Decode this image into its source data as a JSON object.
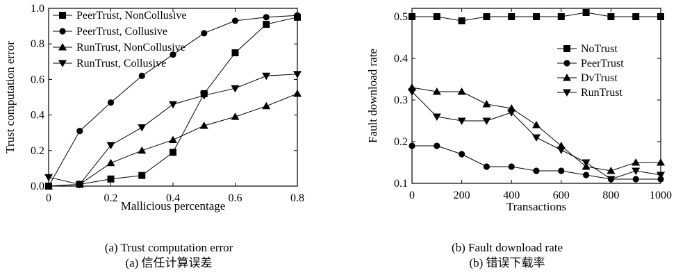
{
  "chart_data": [
    {
      "type": "line",
      "xlabel": "Mallicious percentage",
      "ylabel": "Trust computation error",
      "xlim": [
        0,
        0.8
      ],
      "ylim": [
        0,
        1.0
      ],
      "x_ticks": [
        "0",
        "0.2",
        "0.4",
        "0.6",
        "0.8"
      ],
      "y_ticks": [
        "0.0",
        "0.2",
        "0.4",
        "0.6",
        "0.8",
        "1.0"
      ],
      "x": [
        0,
        0.1,
        0.2,
        0.3,
        0.4,
        0.5,
        0.6,
        0.7,
        0.8
      ],
      "legend": "top-left",
      "series": [
        {
          "name": "PeerTrust, NonCollusive",
          "marker": "square",
          "values": [
            0.0,
            0.01,
            0.04,
            0.06,
            0.19,
            0.52,
            0.75,
            0.91,
            0.95
          ]
        },
        {
          "name": "PeerTrust, Collusive",
          "marker": "circle",
          "values": [
            0.0,
            0.31,
            0.47,
            0.62,
            0.74,
            0.86,
            0.93,
            0.95,
            0.96
          ]
        },
        {
          "name": "RunTrust, NonCollusive",
          "marker": "triangle-up",
          "values": [
            0.0,
            0.01,
            0.13,
            0.2,
            0.26,
            0.34,
            0.39,
            0.45,
            0.52
          ]
        },
        {
          "name": "RunTrust, Collusive",
          "marker": "triangle-down",
          "values": [
            0.05,
            0.01,
            0.23,
            0.33,
            0.46,
            0.51,
            0.55,
            0.62,
            0.63
          ]
        }
      ]
    },
    {
      "type": "line",
      "xlabel": "Transactions",
      "ylabel": "Fault download rate",
      "xlim": [
        0,
        1000
      ],
      "ylim": [
        0.1,
        0.52
      ],
      "x_ticks": [
        "0",
        "200",
        "400",
        "600",
        "800",
        "1000"
      ],
      "y_ticks": [
        "0.1",
        "0.2",
        "0.3",
        "0.4",
        "0.5"
      ],
      "x": [
        0,
        100,
        200,
        300,
        400,
        500,
        600,
        700,
        800,
        900,
        1000
      ],
      "legend": "right",
      "series": [
        {
          "name": "NoTrust",
          "marker": "square",
          "values": [
            0.5,
            0.5,
            0.49,
            0.5,
            0.5,
            0.5,
            0.5,
            0.51,
            0.5,
            0.5,
            0.5
          ]
        },
        {
          "name": "PeerTrust",
          "marker": "circle",
          "values": [
            0.19,
            0.19,
            0.17,
            0.14,
            0.14,
            0.13,
            0.13,
            0.12,
            0.11,
            0.11,
            0.11
          ]
        },
        {
          "name": "DvTrust",
          "marker": "triangle-up",
          "values": [
            0.33,
            0.32,
            0.32,
            0.29,
            0.28,
            0.24,
            0.19,
            0.14,
            0.13,
            0.15,
            0.15
          ]
        },
        {
          "name": "RunTrust",
          "marker": "triangle-down",
          "values": [
            0.32,
            0.26,
            0.25,
            0.25,
            0.27,
            0.21,
            0.18,
            0.15,
            0.11,
            0.13,
            0.12
          ]
        }
      ]
    }
  ],
  "captions": {
    "a_en": "(a) Trust computation error",
    "a_zh": "(a)  信任计算误差",
    "b_en": "(b) Fault download rate",
    "b_zh": "(b)  错误下载率"
  }
}
